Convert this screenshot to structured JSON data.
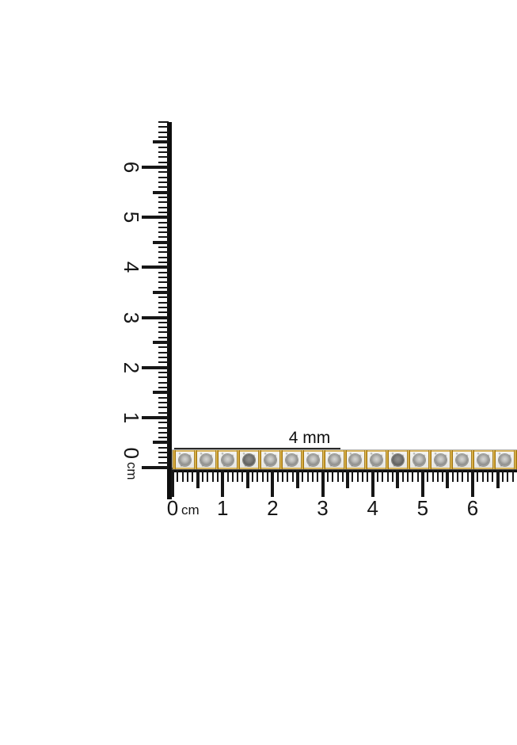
{
  "annotation": {
    "width_label": "4 mm"
  },
  "rulers": {
    "unit": "cm",
    "horizontal": {
      "labels": [
        "0",
        "1",
        "2",
        "3",
        "4",
        "5",
        "6"
      ],
      "unit": "cm",
      "mm_tick_count": 70
    },
    "vertical": {
      "labels": [
        "0",
        "1",
        "2",
        "3",
        "4",
        "5",
        "6"
      ],
      "unit": "cm",
      "mm_tick_count": 70
    }
  },
  "bracelet": {
    "description": "diamond tennis bracelet with round stones in square illusion settings joined by gold bar links",
    "link_count": 16,
    "colors": {
      "gold": "#c9961e",
      "gold_light": "#eccb6d",
      "gold_dark": "#8a6208",
      "gold_edge": "#d9b55e",
      "stone_outer": "#8f8f8c",
      "stone_inner": "#d6d6d3"
    }
  },
  "background": "#ffffff"
}
